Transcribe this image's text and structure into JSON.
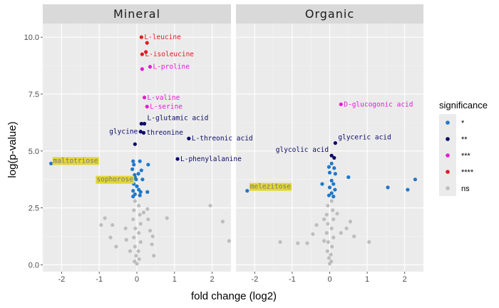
{
  "chart_data": {
    "type": "scatter",
    "xlabel": "fold change (log2)",
    "ylabel": "log(p-value)",
    "xlim": [
      -2.5,
      2.5
    ],
    "ylim": [
      -0.3,
      10.6
    ],
    "x_ticks": [
      -2,
      -1,
      0,
      1,
      2
    ],
    "y_ticks": [
      0.0,
      2.5,
      5.0,
      7.5,
      10.0
    ],
    "y_tick_labels": [
      "0.0",
      "2.5",
      "5.0",
      "7.5",
      "10.0"
    ],
    "grid": true,
    "legend": {
      "title": "significance",
      "position": "right",
      "entries": [
        {
          "label": "*",
          "color": "#1f78c8"
        },
        {
          "label": "**",
          "color": "#0a0a6b"
        },
        {
          "label": "***",
          "color": "#e619d9"
        },
        {
          "label": "****",
          "color": "#e41a1c"
        },
        {
          "label": "ns",
          "color": "#bdbdbd"
        }
      ]
    },
    "colors": {
      "*": "#1f78c8",
      "**": "#0a0a6b",
      "***": "#e619d9",
      "****": "#e41a1c",
      "ns": "#bdbdbd"
    },
    "highlight_color": "#e2d63a",
    "panels": [
      {
        "title": "Mineral",
        "points": [
          {
            "x": 0.12,
            "y": 10.0,
            "sig": "****",
            "label": "L-leucine"
          },
          {
            "x": 0.27,
            "y": 9.75,
            "sig": "****",
            "label": ""
          },
          {
            "x": 0.14,
            "y": 9.25,
            "sig": "****",
            "label": "L-isoleucine"
          },
          {
            "x": 0.24,
            "y": 9.35,
            "sig": "****",
            "label": ""
          },
          {
            "x": 0.35,
            "y": 8.7,
            "sig": "***",
            "label": "L-proline"
          },
          {
            "x": 0.14,
            "y": 8.6,
            "sig": "***",
            "label": ""
          },
          {
            "x": 0.2,
            "y": 7.35,
            "sig": "***",
            "label": "L-valine"
          },
          {
            "x": 0.27,
            "y": 6.95,
            "sig": "***",
            "label": "L-serine"
          },
          {
            "x": 0.12,
            "y": 6.2,
            "sig": "**",
            "label": ""
          },
          {
            "x": 0.2,
            "y": 6.2,
            "sig": "**",
            "label": "L-glutamic acid"
          },
          {
            "x": 0.1,
            "y": 5.85,
            "sig": "**",
            "label": "glycine"
          },
          {
            "x": 0.18,
            "y": 5.8,
            "sig": "**",
            "label": "threonine"
          },
          {
            "x": 1.38,
            "y": 5.55,
            "sig": "**",
            "label": "L-threonic acid"
          },
          {
            "x": -0.05,
            "y": 5.3,
            "sig": "**",
            "label": ""
          },
          {
            "x": 1.08,
            "y": 4.65,
            "sig": "**",
            "label": "L-phenylalanine"
          },
          {
            "x": -2.28,
            "y": 4.45,
            "sig": "*",
            "label": "maltotriose",
            "highlight": true
          },
          {
            "x": -0.1,
            "y": 4.55,
            "sig": "*",
            "label": ""
          },
          {
            "x": -0.08,
            "y": 4.4,
            "sig": "*",
            "label": ""
          },
          {
            "x": 0.08,
            "y": 4.55,
            "sig": "*",
            "label": ""
          },
          {
            "x": 0.3,
            "y": 4.4,
            "sig": "*",
            "label": ""
          },
          {
            "x": -0.12,
            "y": 4.2,
            "sig": "*",
            "label": ""
          },
          {
            "x": 0.12,
            "y": 4.15,
            "sig": "*",
            "label": ""
          },
          {
            "x": -0.06,
            "y": 3.95,
            "sig": "*",
            "label": ""
          },
          {
            "x": 0.04,
            "y": 4.0,
            "sig": "*",
            "label": ""
          },
          {
            "x": -0.05,
            "y": 3.85,
            "sig": "*",
            "label": ""
          },
          {
            "x": -0.02,
            "y": 3.75,
            "sig": "*",
            "label": "sophorose",
            "highlight": true
          },
          {
            "x": 0.15,
            "y": 3.75,
            "sig": "*",
            "label": ""
          },
          {
            "x": -0.08,
            "y": 3.55,
            "sig": "*",
            "label": ""
          },
          {
            "x": 0.0,
            "y": 3.45,
            "sig": "*",
            "label": ""
          },
          {
            "x": 0.05,
            "y": 3.3,
            "sig": "*",
            "label": ""
          },
          {
            "x": -0.1,
            "y": 3.25,
            "sig": "*",
            "label": ""
          },
          {
            "x": 0.1,
            "y": 3.2,
            "sig": "*",
            "label": ""
          },
          {
            "x": 0.28,
            "y": 3.2,
            "sig": "*",
            "label": ""
          },
          {
            "x": -0.05,
            "y": 3.1,
            "sig": "*",
            "label": ""
          },
          {
            "x": 0.08,
            "y": 3.05,
            "sig": "*",
            "label": ""
          },
          {
            "x": -0.1,
            "y": 3.0,
            "sig": "*",
            "label": ""
          },
          {
            "x": 1.95,
            "y": 2.6,
            "sig": "ns",
            "label": ""
          },
          {
            "x": 2.28,
            "y": 1.9,
            "sig": "ns",
            "label": ""
          },
          {
            "x": 2.45,
            "y": 1.05,
            "sig": "ns",
            "label": ""
          },
          {
            "x": 0.8,
            "y": 2.05,
            "sig": "ns",
            "label": ""
          },
          {
            "x": 0.28,
            "y": 2.45,
            "sig": "ns",
            "label": ""
          },
          {
            "x": 0.18,
            "y": 2.3,
            "sig": "ns",
            "label": ""
          },
          {
            "x": -0.85,
            "y": 2.05,
            "sig": "ns",
            "label": ""
          },
          {
            "x": -0.95,
            "y": 1.75,
            "sig": "ns",
            "label": ""
          },
          {
            "x": -0.65,
            "y": 1.75,
            "sig": "ns",
            "label": ""
          },
          {
            "x": -0.7,
            "y": 1.2,
            "sig": "ns",
            "label": ""
          },
          {
            "x": -0.55,
            "y": 0.8,
            "sig": "ns",
            "label": ""
          },
          {
            "x": -0.3,
            "y": 1.6,
            "sig": "ns",
            "label": ""
          },
          {
            "x": -0.28,
            "y": 1.1,
            "sig": "ns",
            "label": ""
          },
          {
            "x": -0.18,
            "y": 0.6,
            "sig": "ns",
            "label": ""
          },
          {
            "x": 0.3,
            "y": 2.0,
            "sig": "ns",
            "label": ""
          },
          {
            "x": 0.35,
            "y": 1.5,
            "sig": "ns",
            "label": ""
          },
          {
            "x": 0.42,
            "y": 1.25,
            "sig": "ns",
            "label": ""
          },
          {
            "x": 0.4,
            "y": 0.9,
            "sig": "ns",
            "label": ""
          },
          {
            "x": 0.45,
            "y": 0.4,
            "sig": "ns",
            "label": ""
          },
          {
            "x": -0.05,
            "y": 2.8,
            "sig": "ns",
            "label": ""
          },
          {
            "x": 0.05,
            "y": 2.6,
            "sig": "ns",
            "label": ""
          },
          {
            "x": -0.08,
            "y": 2.4,
            "sig": "ns",
            "label": ""
          },
          {
            "x": 0.08,
            "y": 2.2,
            "sig": "ns",
            "label": ""
          },
          {
            "x": -0.1,
            "y": 2.0,
            "sig": "ns",
            "label": ""
          },
          {
            "x": 0.1,
            "y": 1.8,
            "sig": "ns",
            "label": ""
          },
          {
            "x": -0.04,
            "y": 1.6,
            "sig": "ns",
            "label": ""
          },
          {
            "x": 0.05,
            "y": 1.4,
            "sig": "ns",
            "label": ""
          },
          {
            "x": -0.08,
            "y": 1.2,
            "sig": "ns",
            "label": ""
          },
          {
            "x": 0.1,
            "y": 1.0,
            "sig": "ns",
            "label": ""
          },
          {
            "x": -0.05,
            "y": 0.8,
            "sig": "ns",
            "label": ""
          },
          {
            "x": 0.04,
            "y": 0.6,
            "sig": "ns",
            "label": ""
          },
          {
            "x": -0.02,
            "y": 0.4,
            "sig": "ns",
            "label": ""
          },
          {
            "x": 0.06,
            "y": 0.25,
            "sig": "ns",
            "label": ""
          },
          {
            "x": -0.06,
            "y": 0.15,
            "sig": "ns",
            "label": ""
          },
          {
            "x": 0.0,
            "y": 0.05,
            "sig": "ns",
            "label": ""
          }
        ]
      },
      {
        "title": "Organic",
        "points": [
          {
            "x": 0.3,
            "y": 7.05,
            "sig": "***",
            "label": "D-glucogonic acid"
          },
          {
            "x": 0.15,
            "y": 5.35,
            "sig": "**",
            "label": "glyceric acid"
          },
          {
            "x": 0.05,
            "y": 4.8,
            "sig": "**",
            "label": "glycolic acid"
          },
          {
            "x": 0.12,
            "y": 4.7,
            "sig": "**",
            "label": ""
          },
          {
            "x": 2.28,
            "y": 3.75,
            "sig": "*",
            "label": ""
          },
          {
            "x": 1.55,
            "y": 3.4,
            "sig": "*",
            "label": ""
          },
          {
            "x": 2.08,
            "y": 3.3,
            "sig": "*",
            "label": ""
          },
          {
            "x": -2.2,
            "y": 3.25,
            "sig": "*",
            "label": "melezitose",
            "highlight": true
          },
          {
            "x": 0.05,
            "y": 4.45,
            "sig": "*",
            "label": ""
          },
          {
            "x": -0.02,
            "y": 4.3,
            "sig": "*",
            "label": ""
          },
          {
            "x": 0.12,
            "y": 4.25,
            "sig": "*",
            "label": ""
          },
          {
            "x": 0.0,
            "y": 4.05,
            "sig": "*",
            "label": ""
          },
          {
            "x": 0.15,
            "y": 4.0,
            "sig": "*",
            "label": ""
          },
          {
            "x": 0.5,
            "y": 3.85,
            "sig": "*",
            "label": ""
          },
          {
            "x": -0.2,
            "y": 3.55,
            "sig": "*",
            "label": ""
          },
          {
            "x": 0.05,
            "y": 3.7,
            "sig": "*",
            "label": ""
          },
          {
            "x": 0.1,
            "y": 3.55,
            "sig": "*",
            "label": ""
          },
          {
            "x": 0.0,
            "y": 3.4,
            "sig": "*",
            "label": ""
          },
          {
            "x": 0.14,
            "y": 3.3,
            "sig": "*",
            "label": ""
          },
          {
            "x": 0.05,
            "y": 3.15,
            "sig": "*",
            "label": ""
          },
          {
            "x": -0.02,
            "y": 3.05,
            "sig": "*",
            "label": ""
          },
          {
            "x": 0.1,
            "y": 3.0,
            "sig": "*",
            "label": ""
          },
          {
            "x": 0.55,
            "y": 1.9,
            "sig": "ns",
            "label": ""
          },
          {
            "x": 0.45,
            "y": 1.6,
            "sig": "ns",
            "label": ""
          },
          {
            "x": 0.3,
            "y": 1.4,
            "sig": "ns",
            "label": ""
          },
          {
            "x": 0.65,
            "y": 1.25,
            "sig": "ns",
            "label": ""
          },
          {
            "x": 1.05,
            "y": 1.0,
            "sig": "ns",
            "label": ""
          },
          {
            "x": -0.45,
            "y": 1.35,
            "sig": "ns",
            "label": ""
          },
          {
            "x": -0.35,
            "y": 1.75,
            "sig": "ns",
            "label": ""
          },
          {
            "x": -0.6,
            "y": 0.95,
            "sig": "ns",
            "label": ""
          },
          {
            "x": -0.85,
            "y": 0.95,
            "sig": "ns",
            "label": ""
          },
          {
            "x": -0.15,
            "y": 1.05,
            "sig": "ns",
            "label": ""
          },
          {
            "x": -1.32,
            "y": 1.0,
            "sig": "ns",
            "label": ""
          },
          {
            "x": -0.15,
            "y": 2.0,
            "sig": "ns",
            "label": ""
          },
          {
            "x": 0.2,
            "y": 2.25,
            "sig": "ns",
            "label": ""
          },
          {
            "x": 0.05,
            "y": 2.8,
            "sig": "ns",
            "label": ""
          },
          {
            "x": -0.05,
            "y": 2.6,
            "sig": "ns",
            "label": ""
          },
          {
            "x": 0.08,
            "y": 2.4,
            "sig": "ns",
            "label": ""
          },
          {
            "x": -0.08,
            "y": 2.2,
            "sig": "ns",
            "label": ""
          },
          {
            "x": 0.1,
            "y": 2.0,
            "sig": "ns",
            "label": ""
          },
          {
            "x": -0.05,
            "y": 1.8,
            "sig": "ns",
            "label": ""
          },
          {
            "x": 0.05,
            "y": 1.6,
            "sig": "ns",
            "label": ""
          },
          {
            "x": -0.08,
            "y": 1.4,
            "sig": "ns",
            "label": ""
          },
          {
            "x": 0.1,
            "y": 1.2,
            "sig": "ns",
            "label": ""
          },
          {
            "x": -0.04,
            "y": 1.0,
            "sig": "ns",
            "label": ""
          },
          {
            "x": 0.06,
            "y": 0.8,
            "sig": "ns",
            "label": ""
          },
          {
            "x": -0.06,
            "y": 0.6,
            "sig": "ns",
            "label": ""
          },
          {
            "x": 0.03,
            "y": 0.45,
            "sig": "ns",
            "label": ""
          },
          {
            "x": -0.02,
            "y": 0.3,
            "sig": "ns",
            "label": ""
          },
          {
            "x": 0.04,
            "y": 0.15,
            "sig": "ns",
            "label": ""
          },
          {
            "x": 0.0,
            "y": 0.05,
            "sig": "ns",
            "label": ""
          }
        ]
      }
    ]
  }
}
